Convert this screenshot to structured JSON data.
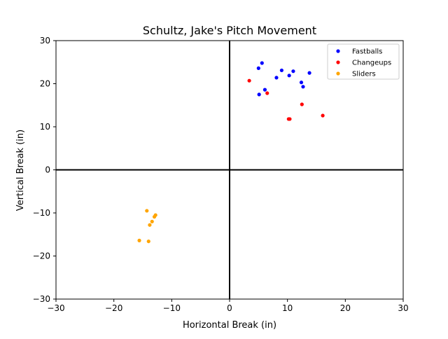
{
  "chart_data": {
    "type": "scatter",
    "title": "Schultz, Jake's Pitch Movement",
    "xlabel": "Horizontal Break (in)",
    "ylabel": "Vertical Break (in)",
    "xlim": [
      -30,
      30
    ],
    "ylim": [
      -30,
      30
    ],
    "xticks": [
      -30,
      -20,
      -10,
      0,
      10,
      20,
      30
    ],
    "yticks": [
      -30,
      -20,
      -10,
      0,
      10,
      20,
      30
    ],
    "xtick_labels": [
      "−30",
      "−20",
      "−10",
      "0",
      "10",
      "20",
      "30"
    ],
    "ytick_labels": [
      "−30",
      "−20",
      "−10",
      "0",
      "10",
      "20",
      "30"
    ],
    "grid": false,
    "reference_lines": {
      "x": 0,
      "y": 0
    },
    "legend_position": "top-right",
    "series": [
      {
        "name": "Fastballs",
        "color": "#0000ff",
        "points": [
          [
            5.6,
            24.8
          ],
          [
            5.0,
            23.6
          ],
          [
            9.0,
            23.1
          ],
          [
            11.0,
            22.9
          ],
          [
            13.8,
            22.5
          ],
          [
            10.3,
            21.9
          ],
          [
            8.1,
            21.4
          ],
          [
            12.4,
            20.3
          ],
          [
            12.7,
            19.3
          ],
          [
            6.1,
            18.6
          ],
          [
            5.1,
            17.5
          ]
        ]
      },
      {
        "name": "Changeups",
        "color": "#ff0000",
        "points": [
          [
            3.4,
            20.7
          ],
          [
            6.5,
            17.8
          ],
          [
            12.5,
            15.2
          ],
          [
            16.1,
            12.6
          ],
          [
            10.2,
            11.8
          ],
          [
            10.4,
            11.8
          ]
        ]
      },
      {
        "name": "Sliders",
        "color": "#ffa500",
        "points": [
          [
            -14.3,
            -9.5
          ],
          [
            -12.8,
            -10.5
          ],
          [
            -13.0,
            -10.9
          ],
          [
            -13.4,
            -12.0
          ],
          [
            -13.8,
            -12.8
          ],
          [
            -15.6,
            -16.4
          ],
          [
            -14.0,
            -16.6
          ]
        ]
      }
    ]
  }
}
